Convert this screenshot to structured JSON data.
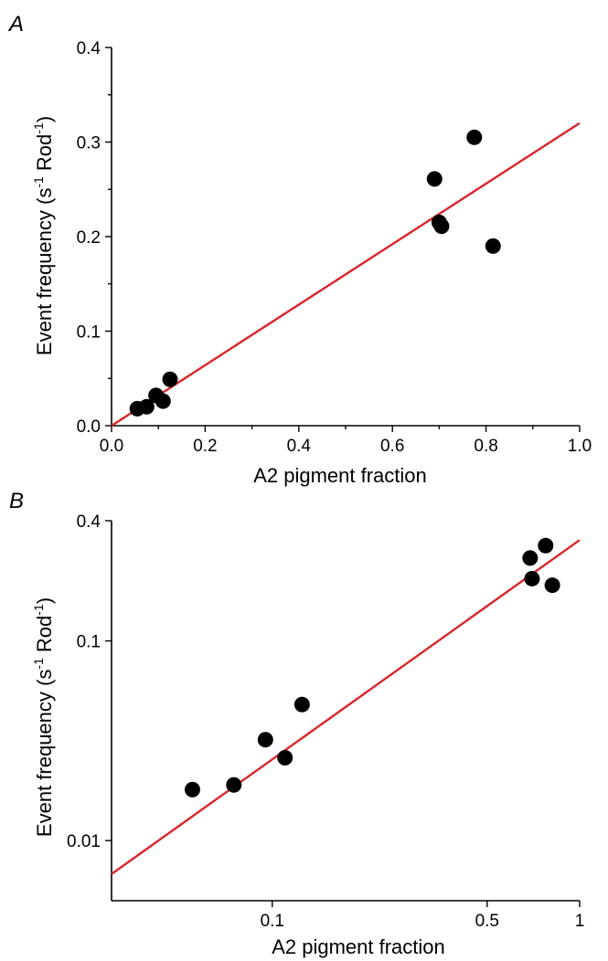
{
  "chart_data": [
    {
      "type": "scatter",
      "panel_label": "A",
      "xlabel": "A2 pigment fraction",
      "ylabel": "Event frequency (s",
      "ylabel_sup1": "-1",
      "ylabel_mid": " Rod",
      "ylabel_sup2": "-1",
      "ylabel_end": ")",
      "xscale": "linear",
      "yscale": "linear",
      "xlim": [
        0.0,
        1.0
      ],
      "ylim": [
        0.0,
        0.4
      ],
      "xticks": [
        0.0,
        0.2,
        0.4,
        0.6,
        0.8,
        1.0
      ],
      "xtick_labels": [
        "0.0",
        "0.2",
        "0.4",
        "0.6",
        "0.8",
        "1.0"
      ],
      "yticks": [
        0.0,
        0.1,
        0.2,
        0.3,
        0.4
      ],
      "ytick_labels": [
        "0.0",
        "0.1",
        "0.2",
        "0.3",
        "0.4"
      ],
      "points": [
        {
          "x": 0.055,
          "y": 0.018
        },
        {
          "x": 0.075,
          "y": 0.02
        },
        {
          "x": 0.095,
          "y": 0.032
        },
        {
          "x": 0.11,
          "y": 0.026
        },
        {
          "x": 0.125,
          "y": 0.049
        },
        {
          "x": 0.69,
          "y": 0.261
        },
        {
          "x": 0.7,
          "y": 0.215
        },
        {
          "x": 0.705,
          "y": 0.211
        },
        {
          "x": 0.775,
          "y": 0.305
        },
        {
          "x": 0.815,
          "y": 0.19
        }
      ],
      "fit_line": {
        "x": [
          0.0,
          1.0
        ],
        "y": [
          0.0,
          0.32
        ]
      },
      "marker_color": "#000000",
      "fit_color": "#d8262c",
      "grid": false
    },
    {
      "type": "scatter",
      "panel_label": "B",
      "xlabel": "A2 pigment fraction",
      "ylabel": "Event frequency (s",
      "ylabel_sup1": "-1",
      "ylabel_mid": " Rod",
      "ylabel_sup2": "-1",
      "ylabel_end": ")",
      "xscale": "log",
      "yscale": "log",
      "xlim": [
        0.03,
        1.0
      ],
      "ylim": [
        0.005,
        0.4
      ],
      "xticks": [
        0.1,
        0.5,
        1.0
      ],
      "xtick_labels": [
        "0.1",
        "0.5",
        "1"
      ],
      "yticks": [
        0.01,
        0.1,
        0.4
      ],
      "ytick_labels": [
        "0.01",
        "0.1",
        "0.4"
      ],
      "points": [
        {
          "x": 0.055,
          "y": 0.018
        },
        {
          "x": 0.075,
          "y": 0.019
        },
        {
          "x": 0.095,
          "y": 0.032
        },
        {
          "x": 0.11,
          "y": 0.026
        },
        {
          "x": 0.125,
          "y": 0.048
        },
        {
          "x": 0.69,
          "y": 0.26
        },
        {
          "x": 0.7,
          "y": 0.205
        },
        {
          "x": 0.775,
          "y": 0.3
        },
        {
          "x": 0.815,
          "y": 0.19
        }
      ],
      "fit_line": {
        "x": [
          0.03,
          1.0
        ],
        "y": [
          0.0068,
          0.32
        ]
      },
      "marker_color": "#000000",
      "fit_color": "#d8262c",
      "grid": false
    }
  ]
}
